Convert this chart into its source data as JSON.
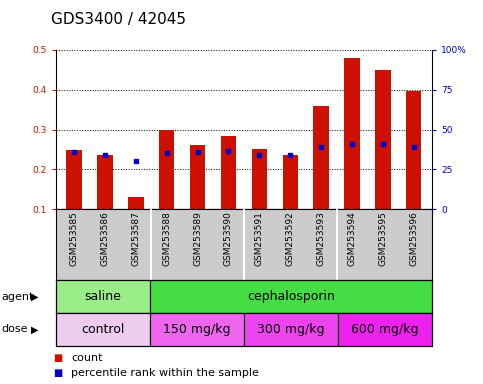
{
  "title": "GDS3400 / 42045",
  "samples": [
    "GSM253585",
    "GSM253586",
    "GSM253587",
    "GSM253588",
    "GSM253589",
    "GSM253590",
    "GSM253591",
    "GSM253592",
    "GSM253593",
    "GSM253594",
    "GSM253595",
    "GSM253596"
  ],
  "count_values": [
    0.248,
    0.237,
    0.13,
    0.298,
    0.262,
    0.285,
    0.252,
    0.237,
    0.358,
    0.48,
    0.45,
    0.398
  ],
  "percentile_values": [
    0.245,
    0.237,
    0.22,
    0.242,
    0.244,
    0.246,
    0.235,
    0.236,
    0.257,
    0.265,
    0.265,
    0.256
  ],
  "bar_color": "#cc1100",
  "dot_color": "#0000cc",
  "ylim_left": [
    0.1,
    0.5
  ],
  "ylim_right": [
    0,
    100
  ],
  "yticks_left": [
    0.1,
    0.2,
    0.3,
    0.4,
    0.5
  ],
  "yticks_right": [
    0,
    25,
    50,
    75,
    100
  ],
  "yticklabels_right": [
    "0",
    "25",
    "50",
    "75",
    "100%"
  ],
  "grid_color": "black",
  "bg_color": "#ffffff",
  "plot_bg": "#ffffff",
  "agent_groups": [
    {
      "label": "saline",
      "start": 0,
      "end": 3,
      "color": "#99ee88"
    },
    {
      "label": "cephalosporin",
      "start": 3,
      "end": 12,
      "color": "#44dd44"
    }
  ],
  "dose_groups": [
    {
      "label": "control",
      "start": 0,
      "end": 3,
      "color": "#eeccee"
    },
    {
      "label": "150 mg/kg",
      "start": 3,
      "end": 6,
      "color": "#ee66ee"
    },
    {
      "label": "300 mg/kg",
      "start": 6,
      "end": 9,
      "color": "#ee44ee"
    },
    {
      "label": "600 mg/kg",
      "start": 9,
      "end": 12,
      "color": "#ee22ee"
    }
  ],
  "xtick_bg": "#cccccc",
  "bar_width": 0.5,
  "dot_size": 18,
  "legend_count_label": "count",
  "legend_pct_label": "percentile rank within the sample",
  "agent_label": "agent",
  "dose_label": "dose",
  "title_fontsize": 11,
  "tick_fontsize": 6.5,
  "label_fontsize": 8,
  "annotation_fontsize": 9,
  "group_separators": [
    2.5,
    5.5,
    8.5
  ]
}
